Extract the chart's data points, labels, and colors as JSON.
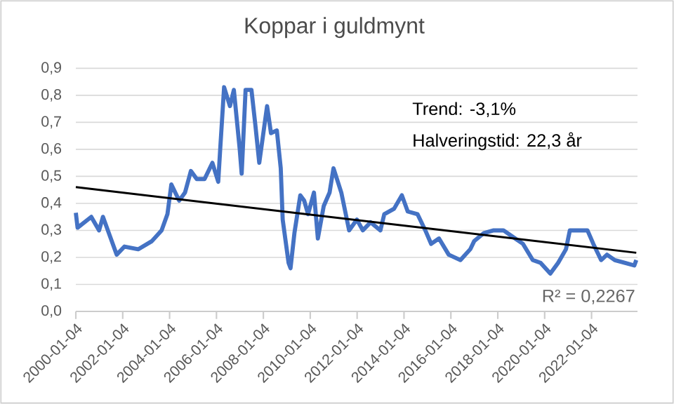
{
  "chart_data": {
    "type": "line",
    "title": "Koppar i guldmynt",
    "xlim": [
      "2000-01-04",
      "2023-12-20"
    ],
    "ylim": [
      0,
      0.9
    ],
    "xticks": [
      "2000-01-04",
      "2002-01-04",
      "2004-01-04",
      "2006-01-04",
      "2008-01-04",
      "2010-01-04",
      "2012-01-04",
      "2014-01-04",
      "2016-01-04",
      "2018-01-04",
      "2020-01-04",
      "2022-01-04"
    ],
    "yticks": [
      {
        "value": 0,
        "label": "0,0"
      },
      {
        "value": 0.1,
        "label": "0,1"
      },
      {
        "value": 0.2,
        "label": "0,2"
      },
      {
        "value": 0.3,
        "label": "0,3"
      },
      {
        "value": 0.4,
        "label": "0,4"
      },
      {
        "value": 0.5,
        "label": "0,5"
      },
      {
        "value": 0.6,
        "label": "0,6"
      },
      {
        "value": 0.7,
        "label": "0,7"
      },
      {
        "value": 0.8,
        "label": "0,8"
      },
      {
        "value": 0.9,
        "label": "0,9"
      }
    ],
    "grid": "y",
    "series": [
      {
        "color": "#4472c4",
        "x": [
          "2000-01-04",
          "2000-02",
          "2000-09",
          "2001-01",
          "2001-03",
          "2001-07",
          "2001-10",
          "2002-02",
          "2002-09",
          "2003-04",
          "2003-09",
          "2003-12",
          "2004-02",
          "2004-06",
          "2004-09",
          "2004-12",
          "2005-03",
          "2005-07",
          "2005-11",
          "2006-02",
          "2006-03",
          "2006-05",
          "2006-08",
          "2006-10",
          "2007-01",
          "2007-02",
          "2007-04",
          "2007-07",
          "2007-09",
          "2007-11",
          "2008-03",
          "2008-05",
          "2008-08",
          "2008-10",
          "2008-11",
          "2009-02",
          "2009-03",
          "2009-05",
          "2009-08",
          "2009-10",
          "2009-12",
          "2010-03",
          "2010-05",
          "2010-08",
          "2010-11",
          "2011-01",
          "2011-05",
          "2011-09",
          "2012-01",
          "2012-04",
          "2012-08",
          "2013-01",
          "2013-03",
          "2013-08",
          "2013-12",
          "2014-03",
          "2014-08",
          "2014-12",
          "2015-03",
          "2015-07",
          "2015-12",
          "2016-06",
          "2016-11",
          "2017-01",
          "2017-06",
          "2017-11",
          "2018-04",
          "2018-10",
          "2019-02",
          "2019-07",
          "2019-11",
          "2020-04",
          "2020-08",
          "2020-12",
          "2021-02",
          "2021-06",
          "2021-11",
          "2022-02",
          "2022-06",
          "2022-09",
          "2023-01",
          "2023-06",
          "2023-11",
          "2023-12"
        ],
        "values": [
          0.365,
          0.31,
          0.35,
          0.3,
          0.35,
          0.27,
          0.21,
          0.24,
          0.23,
          0.26,
          0.3,
          0.36,
          0.47,
          0.41,
          0.44,
          0.52,
          0.49,
          0.49,
          0.55,
          0.48,
          0.6,
          0.83,
          0.76,
          0.82,
          0.6,
          0.51,
          0.82,
          0.82,
          0.69,
          0.55,
          0.76,
          0.66,
          0.67,
          0.53,
          0.34,
          0.18,
          0.16,
          0.29,
          0.43,
          0.41,
          0.36,
          0.44,
          0.27,
          0.39,
          0.44,
          0.53,
          0.44,
          0.3,
          0.34,
          0.3,
          0.33,
          0.3,
          0.36,
          0.38,
          0.43,
          0.37,
          0.36,
          0.3,
          0.25,
          0.27,
          0.21,
          0.19,
          0.23,
          0.26,
          0.29,
          0.3,
          0.3,
          0.27,
          0.25,
          0.19,
          0.18,
          0.14,
          0.18,
          0.23,
          0.3,
          0.3,
          0.3,
          0.25,
          0.19,
          0.21,
          0.19,
          0.18,
          0.17,
          0.19
        ]
      },
      {
        "type": "line",
        "color": "#000000",
        "x": [
          "2000-01-04",
          "2023-12"
        ],
        "values": [
          0.46,
          0.217
        ]
      }
    ],
    "annotations": [
      "Trend: -3,1%",
      "Halveringstid: 22,3 år",
      "R² = 0,2267"
    ]
  }
}
